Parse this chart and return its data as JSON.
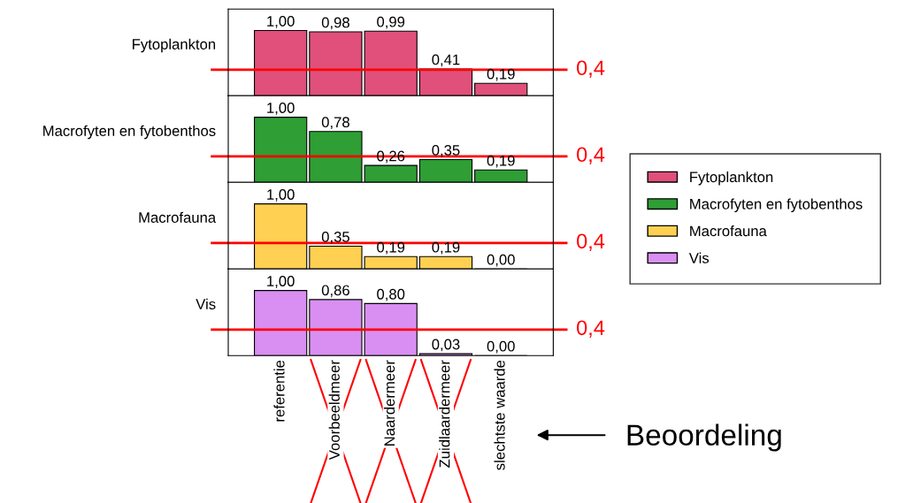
{
  "chart_data": [
    {
      "type": "bar",
      "ylabel": "Fytoplankton",
      "ylim": [
        0,
        1.33
      ],
      "tick_labels": false,
      "legend": "right",
      "series": [
        {
          "name": "Fytoplankton",
          "color": "#e0507a",
          "values": [
            1.0,
            0.98,
            0.99,
            0.41,
            0.19
          ],
          "value_labels": [
            "1,00",
            "0,98",
            "0,99",
            "0,41",
            "0,19"
          ]
        }
      ],
      "ref_lines": [
        {
          "axis": "y",
          "value": 0.4,
          "label": "0,4",
          "color": "#ff0000"
        }
      ]
    },
    {
      "type": "bar",
      "ylabel": "Macrofyten en fytobenthos",
      "ylim": [
        0,
        1.33
      ],
      "tick_labels": false,
      "legend": "right",
      "series": [
        {
          "name": "Macrofyten en fytobenthos",
          "color": "#2e9e35",
          "values": [
            1.0,
            0.78,
            0.26,
            0.35,
            0.19
          ],
          "value_labels": [
            "1,00",
            "0,78",
            "0,26",
            "0,35",
            "0,19"
          ]
        }
      ],
      "ref_lines": [
        {
          "axis": "y",
          "value": 0.4,
          "label": "0,4",
          "color": "#ff0000"
        }
      ]
    },
    {
      "type": "bar",
      "ylabel": "Macrofauna",
      "ylim": [
        0,
        1.33
      ],
      "tick_labels": false,
      "legend": "right",
      "series": [
        {
          "name": "Macrofauna",
          "color": "#ffd052",
          "values": [
            1.0,
            0.35,
            0.19,
            0.19,
            0.0
          ],
          "value_labels": [
            "1,00",
            "0,35",
            "0,19",
            "0,19",
            "0,00"
          ]
        }
      ],
      "ref_lines": [
        {
          "axis": "y",
          "value": 0.4,
          "label": "0,4",
          "color": "#ff0000"
        }
      ]
    },
    {
      "type": "bar",
      "ylabel": "Vis",
      "categories": [
        "referentie",
        "Voorbeeldmeer",
        "Naardermeer",
        "Zuidlaardermeer",
        "slechtste waarde"
      ],
      "ylim": [
        0,
        1.33
      ],
      "tick_labels": "x",
      "legend": "right",
      "series": [
        {
          "name": "Vis",
          "color": "#d98ff2",
          "values": [
            1.0,
            0.86,
            0.8,
            0.03,
            0.0
          ],
          "value_labels": [
            "1,00",
            "0,86",
            "0,80",
            "0,03",
            "0,00"
          ]
        }
      ],
      "ref_lines": [
        {
          "axis": "y",
          "value": 0.4,
          "label": "0,4",
          "color": "#ff0000"
        }
      ],
      "annotations": [
        "Beoordeling"
      ]
    }
  ]
}
